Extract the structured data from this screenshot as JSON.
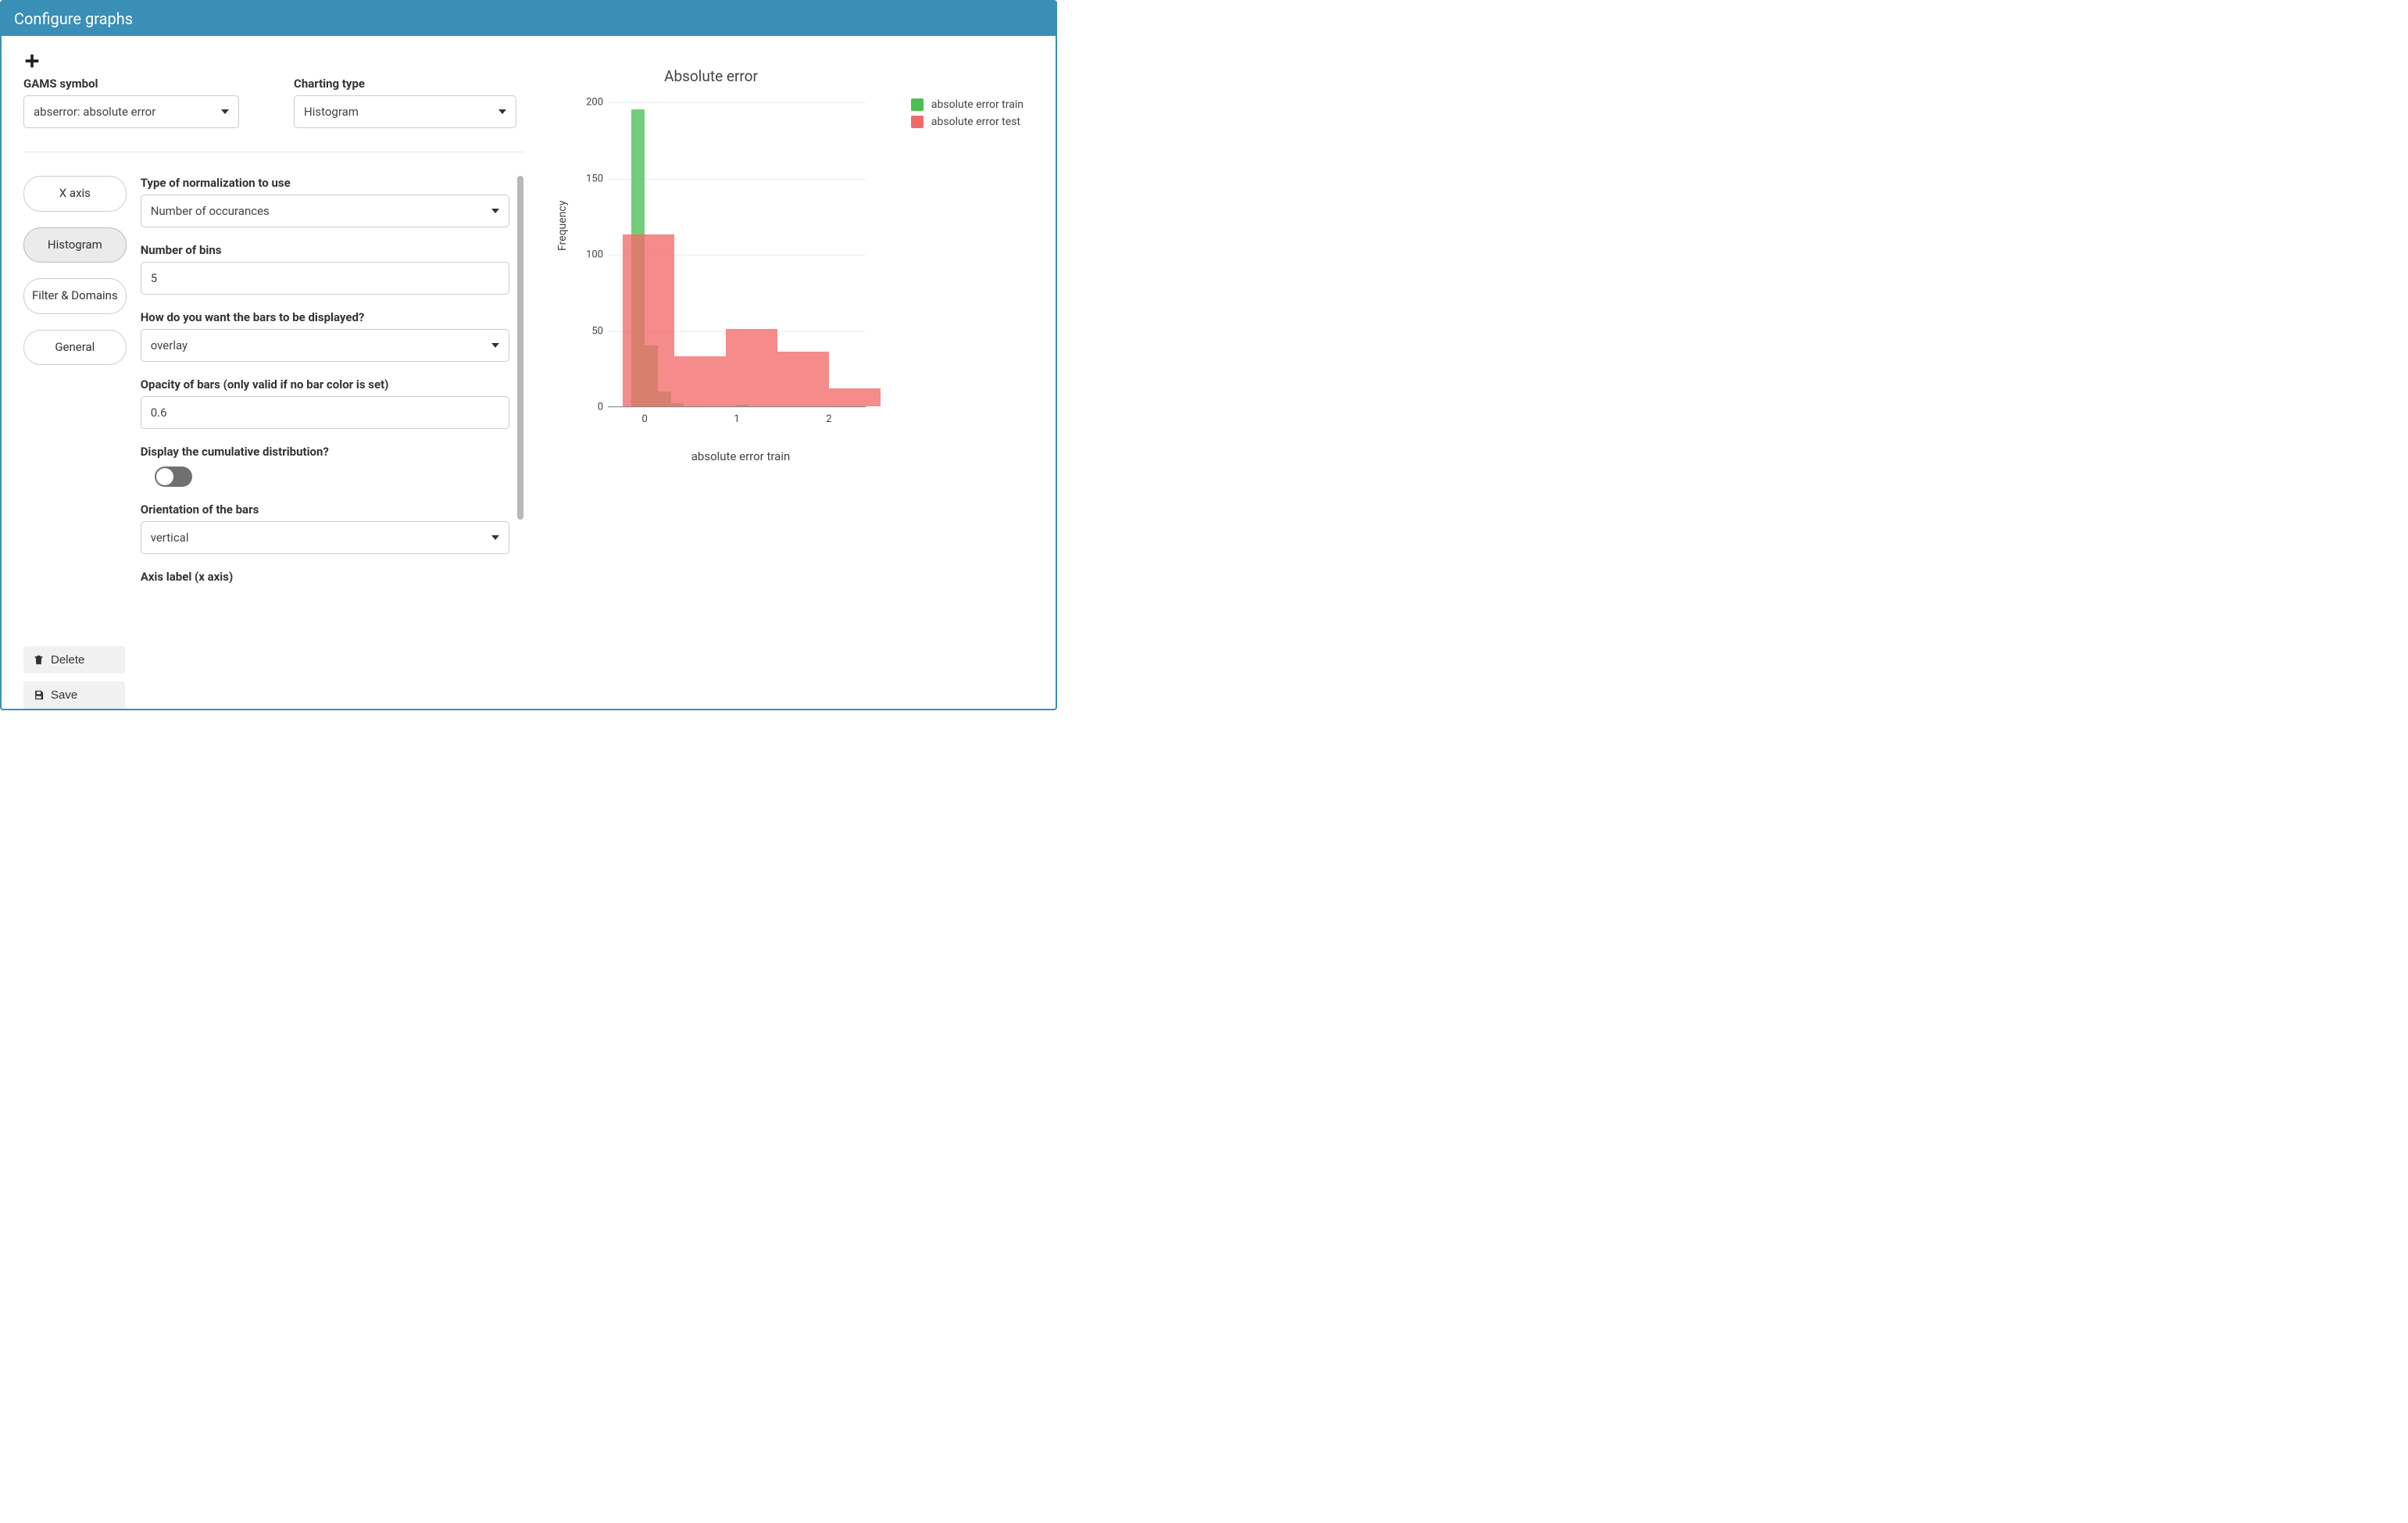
{
  "window": {
    "title": "Configure graphs"
  },
  "top": {
    "gams_label": "GAMS symbol",
    "gams_value": "abserror: absolute error",
    "charting_label": "Charting type",
    "charting_value": "Histogram"
  },
  "tabs": [
    {
      "label": "X axis",
      "active": false
    },
    {
      "label": "Histogram",
      "active": true
    },
    {
      "label": "Filter & Domains",
      "active": false
    },
    {
      "label": "General",
      "active": false
    }
  ],
  "form": {
    "normalization": {
      "label": "Type of normalization to use",
      "value": "Number of occurances"
    },
    "bins": {
      "label": "Number of bins",
      "value": "5"
    },
    "display_mode": {
      "label": "How do you want the bars to be displayed?",
      "value": "overlay"
    },
    "opacity": {
      "label": "Opacity of bars (only valid if no bar color is set)",
      "value": "0.6"
    },
    "cumulative": {
      "label": "Display the cumulative distribution?",
      "on": false
    },
    "orientation": {
      "label": "Orientation of the bars",
      "value": "vertical"
    },
    "axis_label_x": {
      "label": "Axis label (x axis)"
    }
  },
  "actions": {
    "delete": "Delete",
    "save": "Save"
  },
  "chart": {
    "type": "histogram",
    "title": "Absolute error",
    "ylabel": "Frequency",
    "xlabel": "absolute error train",
    "y": {
      "min": 0,
      "max": 200,
      "ticks": [
        0,
        50,
        100,
        150,
        200
      ]
    },
    "x": {
      "min": -0.4,
      "max": 2.4,
      "ticks": [
        0,
        1,
        2
      ]
    },
    "grid_color": "#eeeeee",
    "axis_color": "#888888",
    "background": "#ffffff",
    "opacity": 0.78,
    "series": [
      {
        "name": "absolute error train",
        "color": "#4bbf53",
        "bin_width": 0.142,
        "bins": [
          {
            "x0": -0.142,
            "count": 195
          },
          {
            "x0": 0.0,
            "count": 40
          },
          {
            "x0": 0.142,
            "count": 10
          },
          {
            "x0": 0.284,
            "count": 2
          },
          {
            "x0": 0.994,
            "count": 1
          }
        ]
      },
      {
        "name": "absolute error test",
        "color": "#f26a6a",
        "bin_width": 0.56,
        "bins": [
          {
            "x0": -0.24,
            "count": 113
          },
          {
            "x0": 0.32,
            "count": 33
          },
          {
            "x0": 0.88,
            "count": 51
          },
          {
            "x0": 1.44,
            "count": 36
          },
          {
            "x0": 2.0,
            "count": 12
          }
        ]
      }
    ],
    "legend": [
      {
        "label": "absolute error train",
        "color": "#4bbf53"
      },
      {
        "label": "absolute error test",
        "color": "#f26a6a"
      }
    ]
  }
}
